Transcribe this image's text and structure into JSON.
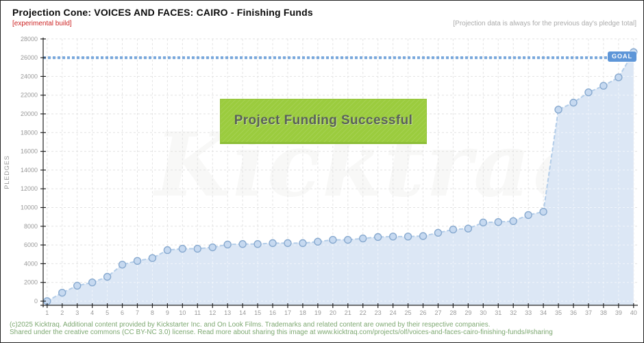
{
  "header": {
    "title": "Projection Cone: VOICES AND FACES: CAIRO - Finishing Funds",
    "build_note": "[experimental build]",
    "projection_note": "[Projection data is always for the previous day's pledge total]"
  },
  "chart_data": {
    "type": "area",
    "title": "Projection Cone: VOICES AND FACES: CAIRO - Finishing Funds",
    "xlabel": "",
    "ylabel": "PLEDGES",
    "x_ticks": [
      1,
      2,
      3,
      4,
      5,
      6,
      7,
      8,
      9,
      10,
      11,
      12,
      13,
      14,
      15,
      16,
      17,
      18,
      19,
      20,
      21,
      22,
      23,
      24,
      25,
      26,
      27,
      28,
      29,
      30,
      31,
      32,
      33,
      34,
      35,
      36,
      37,
      38,
      39,
      40
    ],
    "values": [
      0,
      900,
      1650,
      2000,
      2600,
      3900,
      4300,
      4600,
      5450,
      5600,
      5600,
      5750,
      6050,
      6100,
      6100,
      6200,
      6200,
      6200,
      6350,
      6550,
      6550,
      6700,
      6850,
      6900,
      6900,
      6950,
      7300,
      7650,
      7750,
      8400,
      8450,
      8550,
      9200,
      9550,
      20450,
      21200,
      22300,
      23000,
      23900,
      26600
    ],
    "ylim": [
      0,
      28000
    ],
    "y_ticks": [
      0,
      2000,
      4000,
      6000,
      8000,
      10000,
      12000,
      14000,
      16000,
      18000,
      20000,
      22000,
      24000,
      26000,
      28000
    ],
    "grid": true,
    "legend": "none",
    "goal": {
      "label": "GOAL",
      "value": 26000
    },
    "success_banner_label": "Project Funding Successful",
    "watermark": "Kicktraq"
  },
  "footer": {
    "line1": "(c)2025 Kicktraq. Additional content provided by Kickstarter Inc. and On Look Films. Trademarks and related content are owned by their respective companies.",
    "line2": "Shared under the creative commons (CC BY-NC 3.0) license. Read more about sharing this image at www.kicktraq.com/projects/olf/voices-and-faces-cairo-finishing-funds/#sharing"
  },
  "colors": {
    "area_fill": "#dce7f5",
    "line": "#b3cde9",
    "point_fill": "#c6d9f0",
    "point_stroke": "#87a9cf",
    "goal_line": "#78a7dc",
    "goal_badge_bg": "#5e96d8",
    "success_bg": "#9bcc3e",
    "success_text": "#59615a",
    "grid": "#e2e2e2",
    "axis": "#222222",
    "tick_text": "#999999",
    "build_note_red": "#cc2222",
    "note_gray": "#aaaaaa",
    "footer_green": "#7da871"
  }
}
